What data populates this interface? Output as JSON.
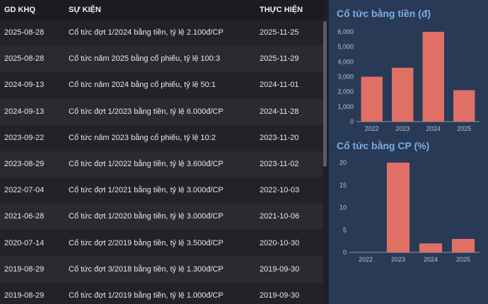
{
  "table": {
    "headers": {
      "date": "GD KHQ",
      "event": "SỰ KIỆN",
      "exec": "THỰC HIỆN"
    },
    "rows": [
      {
        "date": "2025-08-28",
        "event": "Cổ tức đợt 1/2024 bằng tiền, tỷ lệ 2.100đ/CP",
        "exec": "2025-11-25"
      },
      {
        "date": "2025-08-28",
        "event": "Cổ tức năm 2025 bằng cổ phiếu, tỷ lệ 100:3",
        "exec": "2025-11-29"
      },
      {
        "date": "2024-09-13",
        "event": "Cổ tức năm 2024 bằng cổ phiếu, tỷ lệ 50:1",
        "exec": "2024-11-01"
      },
      {
        "date": "2024-09-13",
        "event": "Cổ tức đợt 1/2023 bằng tiền, tỷ lệ 6.000đ/CP",
        "exec": "2024-11-28"
      },
      {
        "date": "2023-09-22",
        "event": "Cổ tức năm 2023 bằng cổ phiếu, tỷ lệ 10:2",
        "exec": "2023-11-20"
      },
      {
        "date": "2023-08-29",
        "event": "Cổ tức đợt 1/2022 bằng tiền, tỷ lệ 3.600đ/CP",
        "exec": "2023-11-02"
      },
      {
        "date": "2022-07-04",
        "event": "Cổ tức đợt 1/2021 bằng tiền, tỷ lệ 3.000đ/CP",
        "exec": "2022-10-03"
      },
      {
        "date": "2021-06-28",
        "event": "Cổ tức đợt 1/2020 bằng tiền, tỷ lệ 3.000đ/CP",
        "exec": "2021-10-06"
      },
      {
        "date": "2020-07-14",
        "event": "Cổ tức đợt 2/2019 bằng tiền, tỷ lệ 3.500đ/CP",
        "exec": "2020-10-30"
      },
      {
        "date": "2019-08-29",
        "event": "Cổ tức đợt 3/2018 bằng tiền, tỷ lệ 1.300đ/CP",
        "exec": "2019-09-30"
      },
      {
        "date": "2019-08-29",
        "event": "Cổ tức đợt 1/2019 bằng tiền, tỷ lệ 1.000đ/CP",
        "exec": "2019-09-30"
      }
    ]
  },
  "chart_data": [
    {
      "type": "bar",
      "title": "Cổ tức bằng tiền (đ)",
      "categories": [
        "2022",
        "2023",
        "2024",
        "2025"
      ],
      "values": [
        3000,
        3600,
        6000,
        2100
      ],
      "ylim": [
        0,
        6000
      ],
      "yticks": [
        0,
        1000,
        2000,
        3000,
        4000,
        5000,
        6000
      ],
      "ytick_labels": [
        "0",
        "1,000",
        "2,000",
        "3,000",
        "4,000",
        "5,000",
        "6,000"
      ],
      "color": "#e06f66"
    },
    {
      "type": "bar",
      "title": "Cổ tức bằng CP (%)",
      "categories": [
        "2022",
        "2023",
        "2024",
        "2025"
      ],
      "values": [
        0,
        20,
        2,
        3
      ],
      "ylim": [
        0,
        20
      ],
      "yticks": [
        0,
        5,
        10,
        15,
        20
      ],
      "ytick_labels": [
        "0",
        "5",
        "10",
        "15",
        "20"
      ],
      "color": "#e06f66"
    }
  ]
}
